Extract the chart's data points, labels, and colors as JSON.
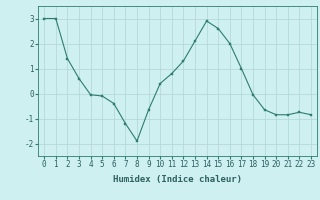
{
  "x": [
    0,
    1,
    2,
    3,
    4,
    5,
    6,
    7,
    8,
    9,
    10,
    11,
    12,
    13,
    14,
    15,
    16,
    17,
    18,
    19,
    20,
    21,
    22,
    23
  ],
  "y": [
    3.0,
    3.0,
    1.4,
    0.6,
    -0.05,
    -0.1,
    -0.4,
    -1.2,
    -1.9,
    -0.65,
    0.4,
    0.8,
    1.3,
    2.1,
    2.9,
    2.6,
    2.0,
    1.0,
    -0.05,
    -0.65,
    -0.85,
    -0.85,
    -0.75,
    -0.85
  ],
  "line_color": "#2e7d6e",
  "marker": "s",
  "marker_size": 2.0,
  "bg_color": "#cff0f0",
  "grid_color": "#b0d4d4",
  "xlabel": "Humidex (Indice chaleur)",
  "ylim": [
    -2.5,
    3.5
  ],
  "xlim": [
    -0.5,
    23.5
  ],
  "yticks": [
    -2,
    -1,
    0,
    1,
    2,
    3
  ],
  "xticks": [
    0,
    1,
    2,
    3,
    4,
    5,
    6,
    7,
    8,
    9,
    10,
    11,
    12,
    13,
    14,
    15,
    16,
    17,
    18,
    19,
    20,
    21,
    22,
    23
  ],
  "label_fontsize": 6.5,
  "tick_fontsize": 5.5
}
